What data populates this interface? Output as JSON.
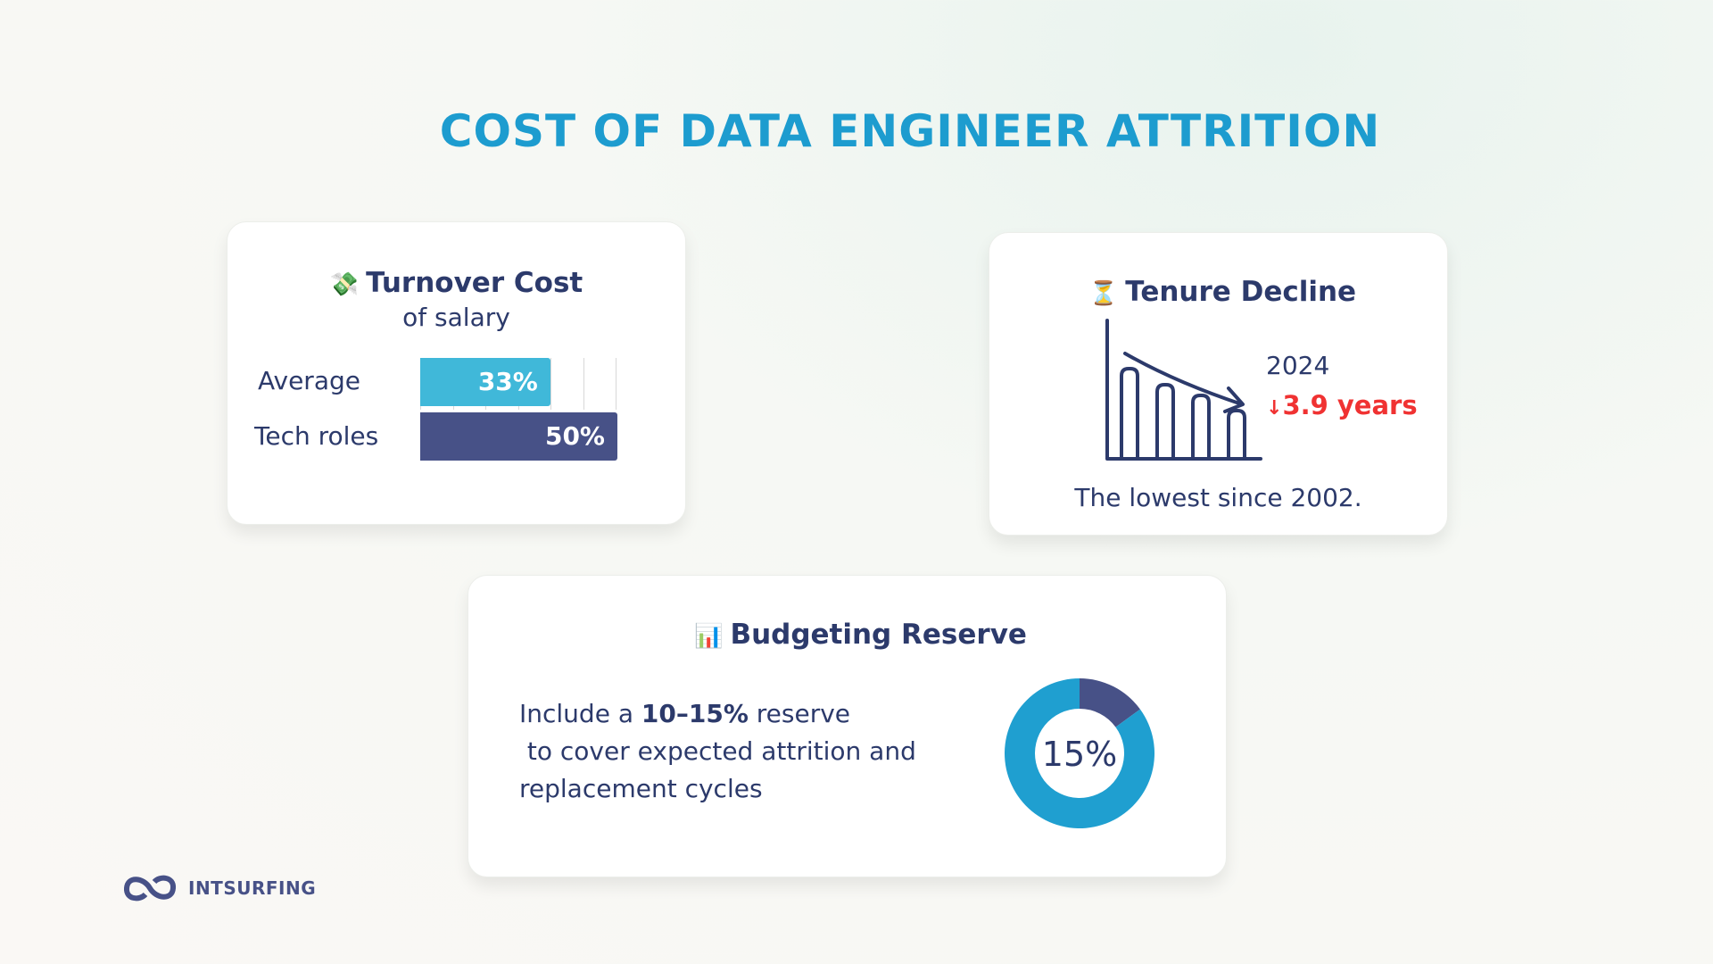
{
  "title": "COST OF DATA ENGINEER ATTRITION",
  "turnover": {
    "icon": "money-with-wings-icon",
    "emoji": "💸",
    "title": "Turnover Cost",
    "subtitle": "of salary",
    "chart_data": {
      "type": "bar",
      "orientation": "horizontal",
      "categories": [
        "Average",
        "Tech roles"
      ],
      "values": [
        33,
        50
      ],
      "labels": [
        "33%",
        "50%"
      ],
      "colors": [
        "#40b8d9",
        "#475187"
      ]
    }
  },
  "tenure": {
    "icon": "hourglass-icon",
    "emoji": "⏳",
    "title": "Tenure Decline",
    "year": "2024",
    "arrow": "↓",
    "value": "3.9 years",
    "note": "The lowest since 2002.",
    "value_color": "#f03232"
  },
  "budget": {
    "icon": "bar-chart-icon",
    "emoji": "📊",
    "title": "Budgeting Reserve",
    "text_before": "Include a ",
    "text_bold": "10–15%",
    "text_after": " reserve",
    "line2": " to cover expected attrition and",
    "line3": "replacement cycles",
    "chart_data": {
      "type": "pie",
      "donut": true,
      "values": [
        15,
        85
      ],
      "colors": [
        "#475187",
        "#1f9fd0"
      ],
      "center_label": "15%"
    }
  },
  "logo": {
    "text": "INTSURFING"
  }
}
